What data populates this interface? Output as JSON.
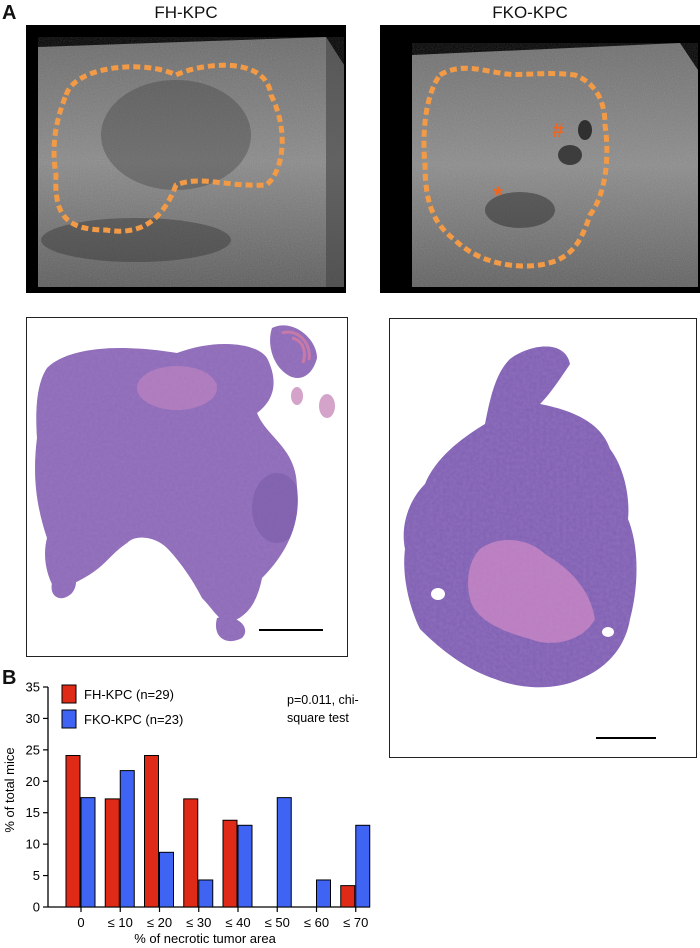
{
  "panel_labels": {
    "a": "A",
    "b": "B"
  },
  "columns": [
    {
      "title": "FH-KPC"
    },
    {
      "title": "FKO-KPC"
    }
  ],
  "ultrasound_markers": {
    "hash": "#",
    "star": "*"
  },
  "colors": {
    "fh": "#e02a18",
    "fko": "#3f63f2",
    "outline": "#f29a45",
    "stain": "#8a5fb0"
  },
  "stats_note": "p=0.011, chi-square test",
  "chart_data": {
    "type": "bar",
    "xlabel": "% of necrotic tumor area",
    "ylabel": "% of total mice",
    "categories": [
      "0",
      "≤ 10",
      "≤ 20",
      "≤ 30",
      "≤ 40",
      "≤ 50",
      "≤ 60",
      "≤ 70"
    ],
    "ylim": [
      0,
      35
    ],
    "yticks": [
      0,
      5,
      10,
      15,
      20,
      25,
      30,
      35
    ],
    "legend_position": "top-left",
    "series": [
      {
        "name": "FH-KPC (n=29)",
        "color": "#e02a18",
        "values": [
          24.1,
          17.2,
          24.1,
          17.2,
          13.8,
          0,
          0,
          3.4
        ]
      },
      {
        "name": "FKO-KPC (n=23)",
        "color": "#3f63f2",
        "values": [
          17.4,
          21.7,
          8.7,
          4.3,
          13.0,
          17.4,
          4.3,
          13.0
        ]
      }
    ]
  }
}
